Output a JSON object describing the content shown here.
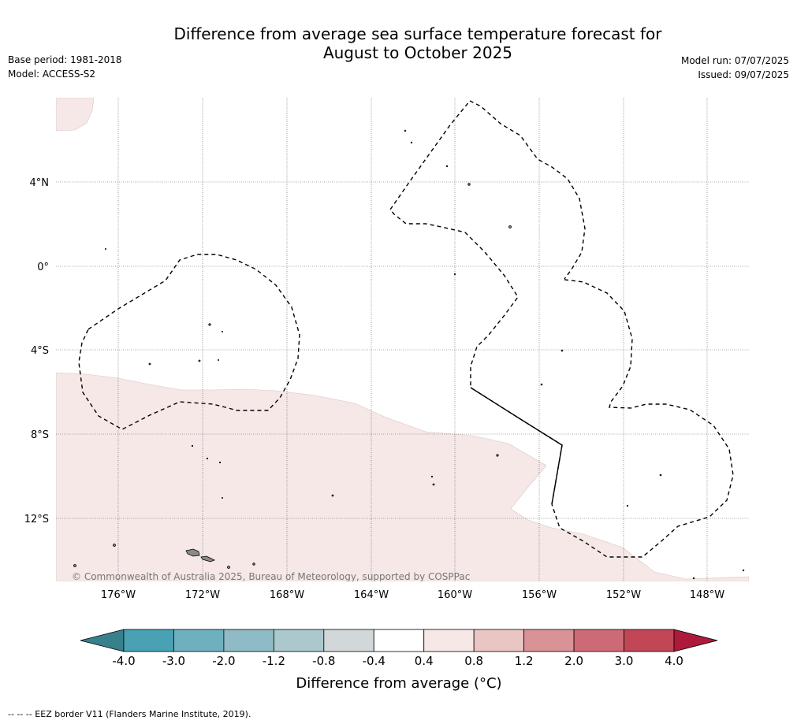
{
  "header": {
    "title_line1": "Difference from average sea surface temperature forecast for",
    "title_line2": "August to October 2025",
    "base_period": "Base period: 1981-2018",
    "model": "Model: ACCESS-S2",
    "model_run": "Model run: 07/07/2025",
    "issued": "Issued: 09/07/2025"
  },
  "map": {
    "lon_ticks": [
      "176°W",
      "172°W",
      "168°W",
      "164°W",
      "160°W",
      "156°W",
      "152°W",
      "148°W"
    ],
    "lat_ticks": [
      "4°N",
      "0°",
      "4°S",
      "8°S",
      "12°S"
    ],
    "copyright": "© Commonwealth of Australia 2025, Bureau of Meteorology, supported by COSPPac",
    "colors": {
      "anomaly_fill": "#f5e8e7",
      "ocean": "#ffffff",
      "eez_border": "#000000",
      "land": "#8a8a8a"
    }
  },
  "colorbar": {
    "ticks": [
      "-4.0",
      "-3.0",
      "-2.0",
      "-1.2",
      "-0.8",
      "-0.4",
      "0.4",
      "0.8",
      "1.2",
      "2.0",
      "3.0",
      "4.0"
    ],
    "under_color": "#37808c",
    "over_color": "#ae1a3b",
    "colors": [
      "#48a2b3",
      "#6fb0bf",
      "#8fbbc6",
      "#abc8cd",
      "#d2d8da",
      "#ffffff",
      "#f5e8e7",
      "#e9c6c3",
      "#d99397",
      "#cc6b76",
      "#c14757"
    ],
    "label": "Difference from average (°C)"
  },
  "footer": {
    "legend_text": "--  --  -- EEZ border V11 (Flanders Marine Institute, 2019)."
  }
}
